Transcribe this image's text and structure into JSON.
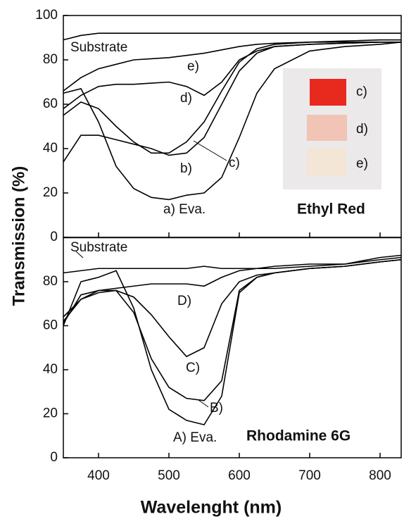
{
  "chart_data": [
    {
      "type": "line",
      "title": "Ethyl Red",
      "y_label": "Transmission (%)",
      "x": [
        350,
        375,
        400,
        425,
        450,
        475,
        500,
        525,
        550,
        575,
        600,
        625,
        650,
        700,
        750,
        800,
        830
      ],
      "xlim": [
        350,
        830
      ],
      "ylim": [
        0,
        100
      ],
      "xticks": [
        400,
        500,
        600,
        700,
        800
      ],
      "yticks": [
        0,
        20,
        40,
        60,
        80,
        100
      ],
      "inset_labels": [
        "c)",
        "d)",
        "e)"
      ],
      "series": [
        {
          "name": "Substrate",
          "color": "#000000",
          "values": [
            89,
            91,
            92,
            92,
            92,
            92,
            92,
            92,
            92,
            92,
            92,
            92,
            92,
            92,
            92,
            92,
            92
          ]
        },
        {
          "name": "e)",
          "color": "#000000",
          "values": [
            66,
            72,
            76,
            78,
            80,
            80.5,
            81,
            82,
            83,
            84.5,
            86,
            87,
            87.5,
            88,
            88.5,
            89,
            89
          ]
        },
        {
          "name": "d)",
          "color": "#000000",
          "values": [
            58,
            64,
            68,
            69,
            69,
            69.5,
            70,
            68,
            64,
            70,
            80,
            84,
            86,
            87,
            87.5,
            88,
            88
          ]
        },
        {
          "name": "c)",
          "color": "#000000",
          "values": [
            55,
            61,
            58,
            50,
            43,
            38,
            38,
            43,
            52,
            66,
            79,
            85,
            87,
            88,
            88,
            88,
            88
          ]
        },
        {
          "name": "b)",
          "color": "#000000",
          "values": [
            34,
            46,
            46,
            44,
            42,
            40,
            37,
            38,
            45,
            60,
            75,
            83,
            86,
            87,
            87.5,
            88,
            88
          ]
        },
        {
          "name": "a) Eva.",
          "color": "#000000",
          "values": [
            65,
            67,
            52,
            32,
            22,
            18,
            17,
            19,
            20,
            27,
            45,
            65,
            76,
            84,
            86,
            87,
            88
          ]
        }
      ]
    },
    {
      "type": "line",
      "title": "Rhodamine 6G",
      "x_label": "Wavelenght (nm)",
      "x": [
        350,
        375,
        400,
        425,
        450,
        475,
        500,
        525,
        550,
        575,
        600,
        625,
        650,
        700,
        750,
        800,
        830
      ],
      "xlim": [
        350,
        830
      ],
      "ylim": [
        0,
        100
      ],
      "xticks": [
        400,
        500,
        600,
        700,
        800
      ],
      "yticks": [
        0,
        20,
        40,
        60,
        80
      ],
      "series": [
        {
          "name": "Substrate",
          "color": "#000000",
          "values": [
            84,
            85,
            86,
            86,
            86,
            86,
            86,
            86,
            87,
            86,
            86,
            86,
            87,
            88,
            88,
            91,
            92
          ]
        },
        {
          "name": "D)",
          "color": "#000000",
          "values": [
            61,
            74,
            76,
            77,
            78,
            79,
            79,
            79,
            78,
            82,
            85,
            86,
            86,
            87,
            88,
            90,
            91
          ]
        },
        {
          "name": "C)",
          "color": "#000000",
          "values": [
            62,
            72,
            75,
            76,
            73,
            65,
            55,
            46,
            50,
            70,
            80,
            83,
            84,
            86,
            87,
            89,
            90
          ]
        },
        {
          "name": "B)",
          "color": "#000000",
          "values": [
            64,
            72,
            76,
            76,
            66,
            45,
            32,
            27,
            26,
            35,
            76,
            82,
            84,
            86,
            87,
            89,
            90
          ]
        },
        {
          "name": "A) Eva.",
          "color": "#000000",
          "values": [
            60,
            80,
            82,
            85,
            68,
            40,
            22,
            17,
            15,
            28,
            75,
            82,
            84,
            86,
            87,
            89,
            90
          ]
        }
      ]
    }
  ]
}
